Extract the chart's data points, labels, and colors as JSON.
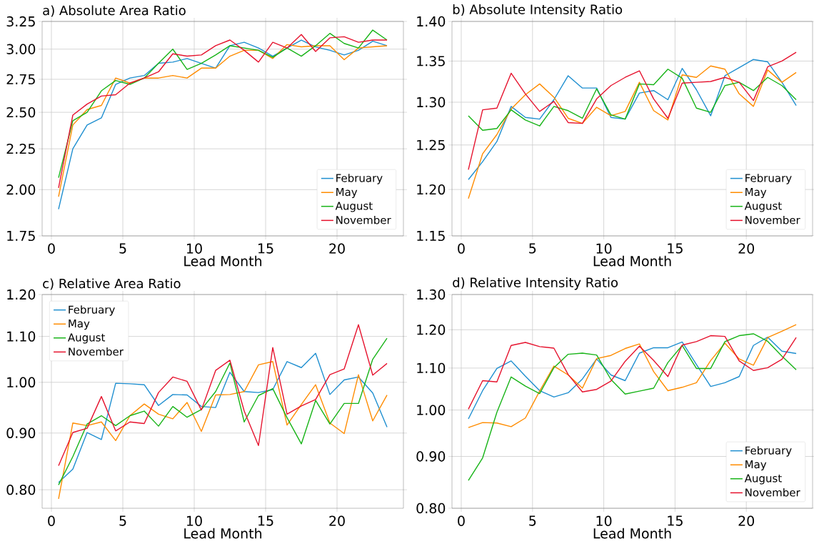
{
  "chart_data": [
    {
      "type": "line",
      "title": "a) Absolute Area Ratio",
      "xlabel": "Lead Month",
      "log": true,
      "grid": true,
      "legend": "bottom right",
      "x": [
        0.5,
        1.5,
        2.5,
        3.5,
        4.5,
        5.5,
        6.5,
        7.5,
        8.5,
        9.5,
        10.5,
        11.5,
        12.5,
        13.5,
        14.5,
        15.5,
        16.5,
        17.5,
        18.5,
        19.5,
        20.5,
        21.5,
        22.5,
        23.5
      ],
      "xlim": [
        -0.65,
        24.65
      ],
      "xticks": [
        0,
        5,
        10,
        15,
        20
      ],
      "ylim": [
        1.75,
        3.25
      ],
      "yticks": [
        1.75,
        {
          "value": 2,
          "label": "2.00"
        },
        2.25,
        {
          "value": 2.5,
          "label": "2.50"
        },
        2.75,
        {
          "value": 3,
          "label": "3.00"
        },
        3.25
      ],
      "series": [
        {
          "name": "February",
          "color": "#1f8fd0",
          "values": [
            1.89,
            2.25,
            2.41,
            2.46,
            2.71,
            2.76,
            2.78,
            2.88,
            2.89,
            2.92,
            2.88,
            2.84,
            3.03,
            3.06,
            3.01,
            2.94,
            3.01,
            3.08,
            3.02,
            2.99,
            2.95,
            2.99,
            3.07,
            3.03
          ]
        },
        {
          "name": "May",
          "color": "#ff8c00",
          "values": [
            1.96,
            2.41,
            2.52,
            2.55,
            2.76,
            2.72,
            2.76,
            2.76,
            2.78,
            2.76,
            2.84,
            2.84,
            2.94,
            2.99,
            2.99,
            2.92,
            3.04,
            3.02,
            3.03,
            3.03,
            2.91,
            3.01,
            3.02,
            3.03
          ]
        },
        {
          "name": "August",
          "color": "#18b418",
          "values": [
            2.07,
            2.44,
            2.5,
            2.66,
            2.74,
            2.71,
            2.76,
            2.88,
            3.0,
            2.83,
            2.88,
            2.95,
            3.03,
            3.01,
            2.99,
            2.93,
            3.01,
            2.94,
            3.03,
            3.14,
            3.05,
            3.01,
            3.17,
            3.08
          ]
        },
        {
          "name": "November",
          "color": "#e6132e",
          "values": [
            2.01,
            2.48,
            2.56,
            2.62,
            2.63,
            2.72,
            2.76,
            2.81,
            2.96,
            2.94,
            2.95,
            3.03,
            3.08,
            2.99,
            2.89,
            3.06,
            3.01,
            3.13,
            2.98,
            3.1,
            3.11,
            3.06,
            3.08,
            3.08
          ]
        }
      ]
    },
    {
      "type": "line",
      "title": "b) Absolute Intensity Ratio",
      "xlabel": "Lead Month",
      "log": true,
      "grid": true,
      "legend": "bottom right",
      "x": [
        0.5,
        1.5,
        2.5,
        3.5,
        4.5,
        5.5,
        6.5,
        7.5,
        8.5,
        9.5,
        10.5,
        11.5,
        12.5,
        13.5,
        14.5,
        15.5,
        16.5,
        17.5,
        18.5,
        19.5,
        20.5,
        21.5,
        22.5,
        23.5
      ],
      "xlim": [
        -0.65,
        24.65
      ],
      "xticks": [
        0,
        5,
        10,
        15,
        20
      ],
      "ylim": [
        1.15,
        1.4
      ],
      "yticks": [
        1.15,
        {
          "value": 1.2,
          "label": "1.20"
        },
        1.25,
        {
          "value": 1.3,
          "label": "1.30"
        },
        1.35,
        {
          "value": 1.4,
          "label": "1.40"
        }
      ],
      "series": [
        {
          "name": "February",
          "color": "#1f8fd0",
          "values": [
            1.211,
            1.231,
            1.254,
            1.295,
            1.282,
            1.28,
            1.303,
            1.332,
            1.317,
            1.317,
            1.282,
            1.28,
            1.311,
            1.314,
            1.303,
            1.341,
            1.315,
            1.284,
            1.332,
            1.342,
            1.352,
            1.349,
            1.324,
            1.296
          ]
        },
        {
          "name": "May",
          "color": "#ff8c00",
          "values": [
            1.19,
            1.24,
            1.262,
            1.292,
            1.309,
            1.322,
            1.306,
            1.281,
            1.275,
            1.294,
            1.284,
            1.289,
            1.324,
            1.29,
            1.279,
            1.333,
            1.33,
            1.344,
            1.34,
            1.31,
            1.295,
            1.339,
            1.324,
            1.336
          ]
        },
        {
          "name": "August",
          "color": "#18b418",
          "values": [
            1.284,
            1.267,
            1.269,
            1.291,
            1.279,
            1.272,
            1.295,
            1.29,
            1.281,
            1.316,
            1.285,
            1.28,
            1.322,
            1.321,
            1.34,
            1.329,
            1.293,
            1.288,
            1.32,
            1.324,
            1.314,
            1.33,
            1.32,
            1.303
          ]
        },
        {
          "name": "November",
          "color": "#e6132e",
          "values": [
            1.222,
            1.291,
            1.293,
            1.335,
            1.31,
            1.289,
            1.301,
            1.276,
            1.275,
            1.304,
            1.32,
            1.33,
            1.338,
            1.304,
            1.281,
            1.323,
            1.324,
            1.325,
            1.33,
            1.324,
            1.302,
            1.343,
            1.35,
            1.361
          ]
        }
      ]
    },
    {
      "type": "line",
      "title": "c) Relative Area Ratio",
      "xlabel": "Lead Month",
      "log": true,
      "grid": true,
      "legend": "top left",
      "x": [
        0.5,
        1.5,
        2.5,
        3.5,
        4.5,
        5.5,
        6.5,
        7.5,
        8.5,
        9.5,
        10.5,
        11.5,
        12.5,
        13.5,
        14.5,
        15.5,
        16.5,
        17.5,
        18.5,
        19.5,
        20.5,
        21.5,
        22.5,
        23.5
      ],
      "xlim": [
        -0.65,
        24.65
      ],
      "xticks": [
        0,
        5,
        10,
        15,
        20
      ],
      "ylim": [
        0.77,
        1.2
      ],
      "yticks": [
        {
          "value": 0.8,
          "label": "0.80"
        },
        {
          "value": 0.9,
          "label": "0.90"
        },
        {
          "value": 1,
          "label": "1.00"
        },
        {
          "value": 1.1,
          "label": "1.10"
        },
        {
          "value": 1.2,
          "label": "1.20"
        }
      ],
      "series": [
        {
          "name": "February",
          "color": "#1f8fd0",
          "values": [
            0.812,
            0.835,
            0.901,
            0.888,
            0.998,
            0.997,
            0.995,
            0.953,
            0.975,
            0.974,
            0.951,
            0.949,
            1.021,
            0.981,
            0.979,
            0.985,
            1.044,
            1.031,
            1.062,
            0.975,
            1.005,
            1.011,
            0.978,
            0.911
          ]
        },
        {
          "name": "May",
          "color": "#ff8c00",
          "values": [
            0.785,
            0.919,
            0.914,
            0.921,
            0.886,
            0.933,
            0.956,
            0.936,
            0.927,
            0.959,
            0.903,
            0.974,
            0.975,
            0.981,
            1.037,
            1.044,
            0.915,
            0.955,
            0.995,
            0.919,
            0.899,
            1.016,
            0.923,
            0.974
          ]
        },
        {
          "name": "August",
          "color": "#18b418",
          "values": [
            0.808,
            0.857,
            0.917,
            0.933,
            0.914,
            0.933,
            0.942,
            0.913,
            0.951,
            0.93,
            0.945,
            0.981,
            1.041,
            0.921,
            0.973,
            0.987,
            0.929,
            0.88,
            0.963,
            0.917,
            0.957,
            0.957,
            1.049,
            1.096
          ]
        },
        {
          "name": "November",
          "color": "#e6132e",
          "values": [
            0.841,
            0.901,
            0.909,
            0.971,
            0.904,
            0.921,
            0.918,
            0.979,
            1.011,
            1.002,
            0.944,
            1.025,
            1.047,
            0.942,
            0.877,
            1.075,
            0.936,
            0.952,
            0.965,
            1.016,
            1.028,
            1.127,
            1.015,
            1.04
          ]
        }
      ]
    },
    {
      "type": "line",
      "title": "d) Relative Intensity Ratio",
      "xlabel": "Lead Month",
      "log": true,
      "grid": true,
      "legend": "bottom right",
      "x": [
        0.5,
        1.5,
        2.5,
        3.5,
        4.5,
        5.5,
        6.5,
        7.5,
        8.5,
        9.5,
        10.5,
        11.5,
        12.5,
        13.5,
        14.5,
        15.5,
        16.5,
        17.5,
        18.5,
        19.5,
        20.5,
        21.5,
        22.5,
        23.5
      ],
      "xlim": [
        -0.65,
        24.65
      ],
      "xticks": [
        0,
        5,
        10,
        15,
        20
      ],
      "ylim": [
        0.8,
        1.3
      ],
      "yticks": [
        {
          "value": 0.8,
          "label": "0.80"
        },
        {
          "value": 0.9,
          "label": "0.90"
        },
        {
          "value": 1,
          "label": "1.00"
        },
        {
          "value": 1.1,
          "label": "1.10"
        },
        {
          "value": 1.2,
          "label": "1.20"
        },
        {
          "value": 1.3,
          "label": "1.30"
        }
      ],
      "series": [
        {
          "name": "February",
          "color": "#1f8fd0",
          "values": [
            0.98,
            1.045,
            1.099,
            1.118,
            1.08,
            1.045,
            1.03,
            1.04,
            1.073,
            1.123,
            1.083,
            1.069,
            1.138,
            1.152,
            1.152,
            1.167,
            1.109,
            1.055,
            1.064,
            1.079,
            1.158,
            1.18,
            1.143,
            1.137
          ]
        },
        {
          "name": "May",
          "color": "#ff8c00",
          "values": [
            0.961,
            0.972,
            0.971,
            0.963,
            0.982,
            1.044,
            1.105,
            1.083,
            1.051,
            1.124,
            1.132,
            1.15,
            1.162,
            1.091,
            1.045,
            1.053,
            1.064,
            1.119,
            1.164,
            1.123,
            1.107,
            1.179,
            1.196,
            1.214
          ]
        },
        {
          "name": "August",
          "color": "#18b418",
          "values": [
            0.852,
            0.897,
            0.995,
            1.078,
            1.056,
            1.038,
            1.101,
            1.135,
            1.138,
            1.133,
            1.072,
            1.037,
            1.044,
            1.051,
            1.114,
            1.158,
            1.099,
            1.099,
            1.168,
            1.184,
            1.189,
            1.169,
            1.13,
            1.096
          ]
        },
        {
          "name": "November",
          "color": "#e6132e",
          "values": [
            1.002,
            1.069,
            1.066,
            1.158,
            1.166,
            1.155,
            1.151,
            1.084,
            1.042,
            1.048,
            1.068,
            1.117,
            1.156,
            1.119,
            1.079,
            1.159,
            1.168,
            1.184,
            1.182,
            1.118,
            1.094,
            1.101,
            1.122,
            1.179
          ]
        }
      ]
    }
  ]
}
